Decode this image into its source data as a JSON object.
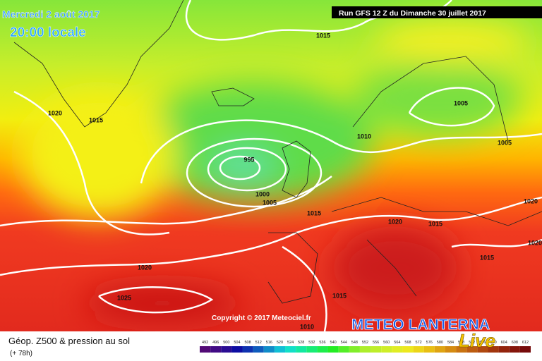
{
  "header": {
    "date": "Mercredi 2 août 2017",
    "time": "20:00 locale",
    "run": "Run GFS 12 Z du Dimanche 30 juillet 2017"
  },
  "isobars": [
    1015,
    1020,
    1015,
    995,
    1000,
    1005,
    1010,
    1005,
    1005,
    1015,
    1020,
    1015,
    1020,
    1015,
    1020,
    1025,
    1015,
    1010,
    1020
  ],
  "copyright": "Copyright © 2017 Meteociel.fr",
  "footer": {
    "title": "Géop. Z500 & pression au sol",
    "lead": "(+ 78h)"
  },
  "scale": [
    492,
    496,
    500,
    504,
    508,
    512,
    516,
    520,
    524,
    528,
    532,
    536,
    540,
    544,
    548,
    552,
    556,
    560,
    564,
    568,
    572,
    576,
    580,
    584,
    588,
    592,
    596,
    600,
    604,
    608,
    612
  ],
  "logo": {
    "name": "METEO LANTERNA",
    "tag": "Live"
  }
}
